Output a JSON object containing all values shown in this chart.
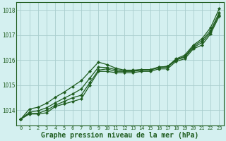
{
  "title": "Graphe pression niveau de la mer (hPa)",
  "bg_color": "#d4f0f0",
  "grid_color": "#aacece",
  "line_color": "#1e5c1e",
  "xlim": [
    -0.5,
    23.5
  ],
  "ylim": [
    1013.4,
    1018.3
  ],
  "yticks": [
    1014,
    1015,
    1016,
    1017,
    1018
  ],
  "xticks": [
    0,
    1,
    2,
    3,
    4,
    5,
    6,
    7,
    8,
    9,
    10,
    11,
    12,
    13,
    14,
    15,
    16,
    17,
    18,
    19,
    20,
    21,
    22,
    23
  ],
  "series": [
    [
      1013.65,
      1013.85,
      1013.85,
      1013.9,
      1014.15,
      1014.25,
      1014.35,
      1014.45,
      1015.0,
      1015.55,
      1015.55,
      1015.5,
      1015.5,
      1015.5,
      1015.55,
      1015.55,
      1015.65,
      1015.65,
      1015.95,
      1016.05,
      1016.45,
      1016.6,
      1017.05,
      1017.75
    ],
    [
      1013.65,
      1013.87,
      1013.88,
      1014.0,
      1014.2,
      1014.35,
      1014.5,
      1014.6,
      1015.1,
      1015.6,
      1015.65,
      1015.55,
      1015.55,
      1015.55,
      1015.6,
      1015.6,
      1015.7,
      1015.72,
      1016.0,
      1016.12,
      1016.5,
      1016.7,
      1017.12,
      1017.82
    ],
    [
      1013.65,
      1013.92,
      1013.98,
      1014.1,
      1014.3,
      1014.48,
      1014.65,
      1014.85,
      1015.28,
      1015.72,
      1015.7,
      1015.62,
      1015.58,
      1015.58,
      1015.62,
      1015.62,
      1015.72,
      1015.75,
      1016.02,
      1016.15,
      1016.55,
      1016.78,
      1017.18,
      1017.9
    ],
    [
      1013.65,
      1014.05,
      1014.12,
      1014.28,
      1014.52,
      1014.72,
      1014.95,
      1015.18,
      1015.55,
      1015.92,
      1015.82,
      1015.68,
      1015.6,
      1015.6,
      1015.62,
      1015.62,
      1015.72,
      1015.75,
      1016.05,
      1016.2,
      1016.6,
      1016.85,
      1017.3,
      1018.05
    ]
  ]
}
